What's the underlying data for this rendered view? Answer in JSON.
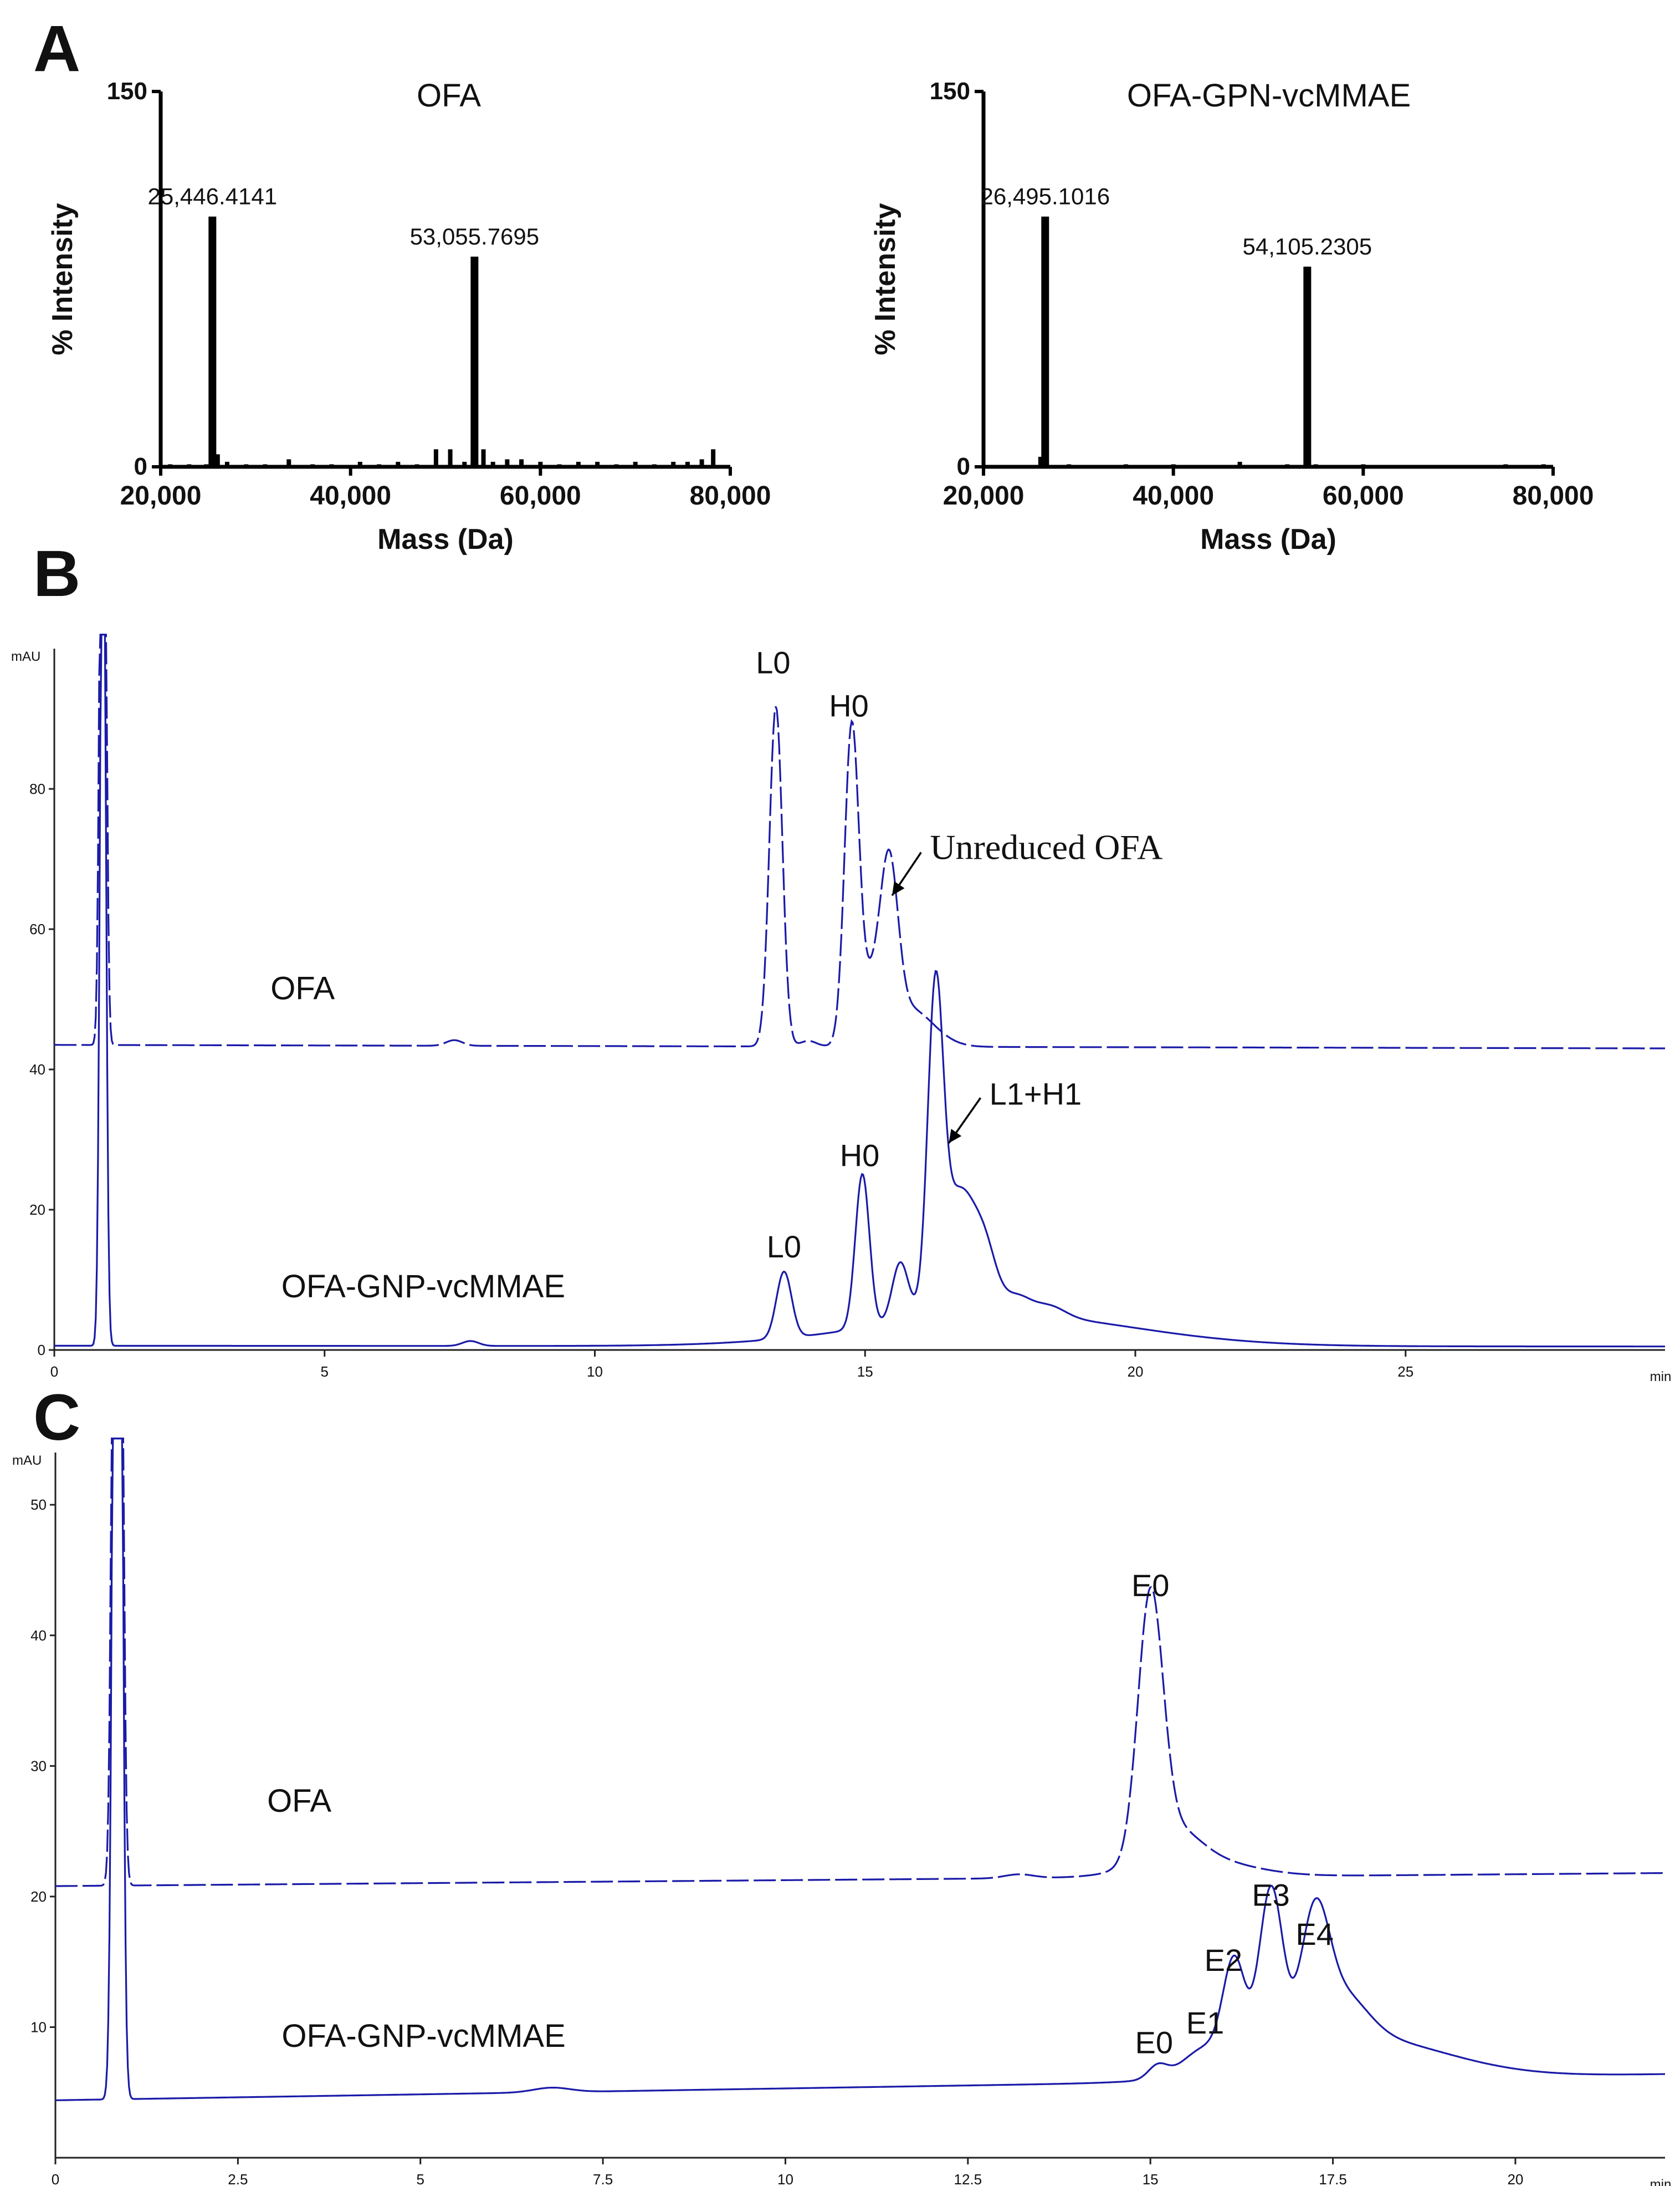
{
  "panel_labels": {
    "a": "A",
    "b": "B",
    "c": "C"
  },
  "chart_data": [
    {
      "id": "A1",
      "type": "bar",
      "title": "OFA",
      "xlabel": "Mass (Da)",
      "ylabel": "% Intensity",
      "xlim": [
        20000,
        80000
      ],
      "ylim": [
        0,
        150
      ],
      "xticks": [
        "20,000",
        "40,000",
        "60,000",
        "80,000"
      ],
      "yticks": [
        "0",
        "150"
      ],
      "peaks": [
        {
          "x": 25446.4141,
          "y": 100,
          "label": "25,446.4141"
        },
        {
          "x": 53055.7695,
          "y": 84,
          "label": "53,055.7695"
        }
      ],
      "minor": [
        [
          21000,
          1
        ],
        [
          23000,
          1
        ],
        [
          24800,
          1
        ],
        [
          26000,
          5
        ],
        [
          27000,
          2
        ],
        [
          29000,
          1
        ],
        [
          31000,
          1
        ],
        [
          33500,
          3
        ],
        [
          36000,
          1
        ],
        [
          38000,
          1
        ],
        [
          41000,
          2
        ],
        [
          43000,
          1
        ],
        [
          45000,
          2
        ],
        [
          47000,
          1
        ],
        [
          49000,
          7
        ],
        [
          50500,
          7
        ],
        [
          52000,
          2
        ],
        [
          54000,
          7
        ],
        [
          55000,
          2
        ],
        [
          56500,
          3
        ],
        [
          58000,
          3
        ],
        [
          60000,
          2
        ],
        [
          62000,
          1
        ],
        [
          64000,
          2
        ],
        [
          66000,
          2
        ],
        [
          68000,
          1
        ],
        [
          70000,
          2
        ],
        [
          72000,
          1
        ],
        [
          74000,
          2
        ],
        [
          75500,
          2
        ],
        [
          77000,
          3
        ],
        [
          78200,
          7
        ]
      ]
    },
    {
      "id": "A2",
      "type": "bar",
      "title": "OFA-GPN-vcMMAE",
      "xlabel": "Mass (Da)",
      "ylabel": "% Intensity",
      "xlim": [
        20000,
        80000
      ],
      "ylim": [
        0,
        150
      ],
      "xticks": [
        "20,000",
        "40,000",
        "60,000",
        "80,000"
      ],
      "yticks": [
        "0",
        "150"
      ],
      "peaks": [
        {
          "x": 26495.1016,
          "y": 100,
          "label": "26,495.1016"
        },
        {
          "x": 54105.2305,
          "y": 80,
          "label": "54,105.2305"
        }
      ],
      "minor": [
        [
          26000,
          4
        ],
        [
          29000,
          1
        ],
        [
          35000,
          1
        ],
        [
          40000,
          1
        ],
        [
          47000,
          2
        ],
        [
          52000,
          1
        ],
        [
          55000,
          1
        ],
        [
          60000,
          1
        ],
        [
          75000,
          1
        ],
        [
          79000,
          1
        ]
      ]
    },
    {
      "id": "B",
      "type": "line",
      "xunit": "min",
      "yunit": "mAU",
      "xlim": [
        0,
        29.8
      ],
      "ylim": [
        0,
        100
      ],
      "xticks": [
        0,
        5,
        10,
        15,
        20,
        25
      ],
      "yticks": [
        0,
        20,
        40,
        60,
        80
      ],
      "series": [
        {
          "name": "OFA",
          "style": "dashed",
          "baseline": 43.5,
          "end": 43.0,
          "peaks": [
            [
              0.9,
              140,
              0.05
            ],
            [
              7.4,
              0.8,
              0.15
            ],
            [
              13.35,
              48.5,
              0.12
            ],
            [
              13.95,
              0.8,
              0.15
            ],
            [
              14.75,
              43,
              0.13
            ],
            [
              15.1,
              8,
              0.25
            ],
            [
              15.45,
              21,
              0.16
            ],
            [
              15.8,
              5.5,
              0.45
            ]
          ]
        },
        {
          "name": "OFA-GNP-vcMMAE",
          "style": "solid",
          "baseline": 0.6,
          "end": 0.5,
          "peaks": [
            [
              0.9,
              140,
              0.05
            ],
            [
              7.7,
              0.7,
              0.15
            ],
            [
              13.5,
              9.5,
              0.14
            ],
            [
              14.95,
              22,
              0.13
            ],
            [
              15.65,
              8.5,
              0.15
            ],
            [
              16.3,
              41.5,
              0.14
            ],
            [
              16.75,
              18,
              0.35
            ],
            [
              17.25,
              5,
              0.2
            ],
            [
              17.8,
              2.5,
              0.25
            ],
            [
              18.4,
              1.6,
              0.3
            ],
            [
              17.5,
              4.5,
              2.4
            ]
          ]
        }
      ],
      "annotations": [
        {
          "text": "L0",
          "x": 13.3,
          "y": 96.5
        },
        {
          "text": "H0",
          "x": 14.7,
          "y": 90.3
        },
        {
          "text": "Unreduced OFA",
          "x": 16.2,
          "y": 70,
          "arrow_to": [
            15.5,
            64.8
          ]
        },
        {
          "text": "L0",
          "x": 13.5,
          "y": 13.2
        },
        {
          "text": "H0",
          "x": 14.9,
          "y": 26.2
        },
        {
          "text": "L1+H1",
          "x": 17.3,
          "y": 35,
          "arrow_to": [
            16.55,
            29.5
          ]
        },
        {
          "text": "OFA",
          "x": 4.0,
          "y": 50
        },
        {
          "text": "OFA-GNP-vcMMAE",
          "x": 4.2,
          "y": 7.5
        }
      ]
    },
    {
      "id": "C",
      "type": "line",
      "xunit": "min",
      "yunit": "mAU",
      "xlim": [
        0,
        22.05
      ],
      "ylim": [
        0,
        54
      ],
      "xticks": [
        0,
        2.5,
        5,
        7.5,
        10,
        12.5,
        15,
        17.5,
        20
      ],
      "xticklabels": [
        "0",
        "2.5",
        "5",
        "7.5",
        "10",
        "12.5",
        "15",
        "17.5",
        "20"
      ],
      "yticks": [
        10,
        20,
        30,
        40,
        50
      ],
      "series": [
        {
          "name": "OFA",
          "style": "dashed",
          "baseline": 20.8,
          "end": 21.8,
          "peaks": [
            [
              0.85,
              140,
              0.05
            ],
            [
              13.2,
              0.3,
              0.2
            ],
            [
              15.0,
              19.5,
              0.17
            ],
            [
              15.3,
              2.5,
              0.35
            ],
            [
              15.6,
              1.4,
              0.7
            ]
          ]
        },
        {
          "name": "OFA-GNP-vcMMAE",
          "style": "solid",
          "baseline": 4.4,
          "end": 6.4,
          "peaks": [
            [
              0.85,
              140,
              0.05
            ],
            [
              6.8,
              0.35,
              0.25
            ],
            [
              15.1,
              1.0,
              0.13
            ],
            [
              15.75,
              1.9,
              0.3
            ],
            [
              16.15,
              7.5,
              0.15
            ],
            [
              16.65,
              12.7,
              0.16
            ],
            [
              17.25,
              8.8,
              0.19
            ],
            [
              17.6,
              3.5,
              0.35
            ],
            [
              17.8,
              3.2,
              1.2
            ]
          ]
        }
      ],
      "annotations": [
        {
          "text": "E0",
          "x": 15.0,
          "y": 43
        },
        {
          "text": "OFA",
          "x": 2.9,
          "y": 26.5
        },
        {
          "text": "E3",
          "x": 16.65,
          "y": 19.3
        },
        {
          "text": "E4",
          "x": 17.25,
          "y": 16.3
        },
        {
          "text": "E2",
          "x": 16.0,
          "y": 14.3
        },
        {
          "text": "E1",
          "x": 15.75,
          "y": 9.5
        },
        {
          "text": "E0",
          "x": 15.05,
          "y": 8.0
        },
        {
          "text": "OFA-GNP-vcMMAE",
          "x": 3.1,
          "y": 8.5
        }
      ]
    }
  ]
}
